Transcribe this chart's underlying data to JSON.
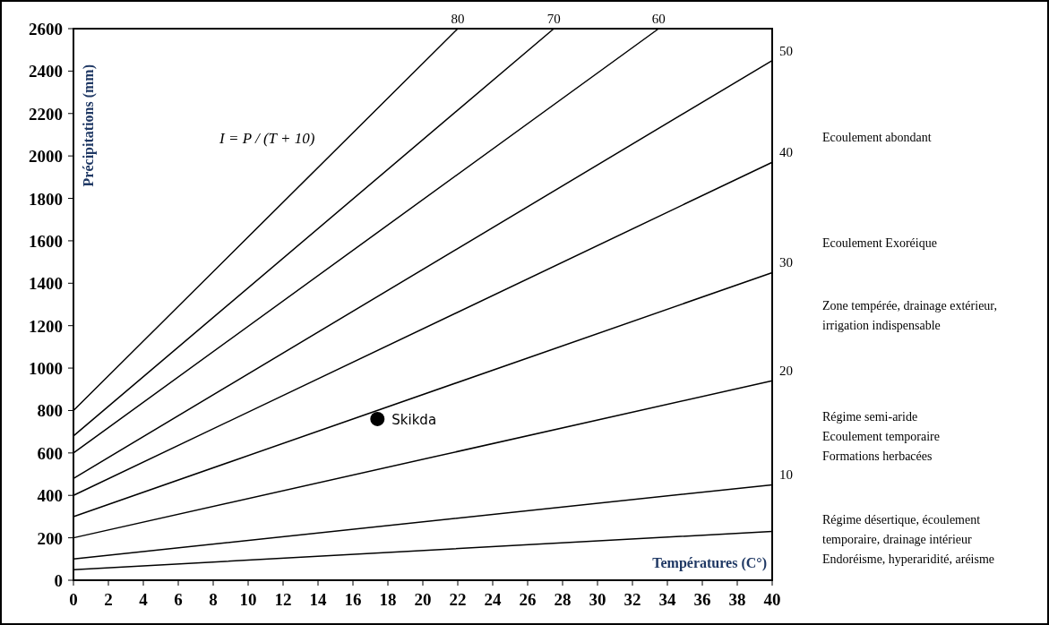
{
  "chart_data": {
    "type": "line",
    "xlabel": "Températures (C°)",
    "ylabel": "Précipitations (mm)",
    "xlim": [
      0,
      40
    ],
    "ylim": [
      0,
      2600
    ],
    "xticks": [
      0,
      2,
      4,
      6,
      8,
      10,
      12,
      14,
      16,
      18,
      20,
      22,
      24,
      26,
      28,
      30,
      32,
      34,
      36,
      38,
      40
    ],
    "yticks": [
      0,
      200,
      400,
      600,
      800,
      1000,
      1200,
      1400,
      1600,
      1800,
      2000,
      2200,
      2400,
      2600
    ],
    "grid": false,
    "marker": "none",
    "line_style": "solid",
    "series": [
      {
        "name": "80",
        "color": "#000000",
        "x": [
          0,
          22
        ],
        "values": [
          800,
          2600
        ]
      },
      {
        "name": "70",
        "color": "#000000",
        "x": [
          0,
          27.5
        ],
        "values": [
          680,
          2600
        ]
      },
      {
        "name": "60",
        "color": "#000000",
        "x": [
          0,
          33.5
        ],
        "values": [
          600,
          2600
        ]
      },
      {
        "name": "50",
        "color": "#000000",
        "x": [
          0,
          40
        ],
        "values": [
          480,
          2450
        ]
      },
      {
        "name": "40",
        "color": "#000000",
        "x": [
          0,
          40
        ],
        "values": [
          400,
          1970
        ]
      },
      {
        "name": "30",
        "color": "#000000",
        "x": [
          0,
          40
        ],
        "values": [
          300,
          1450
        ]
      },
      {
        "name": "20",
        "color": "#000000",
        "x": [
          0,
          40
        ],
        "values": [
          200,
          940
        ]
      },
      {
        "name": "10",
        "color": "#000000",
        "x": [
          0,
          40
        ],
        "values": [
          100,
          450
        ]
      },
      {
        "color": "#000000",
        "x": [
          0,
          40
        ],
        "values": [
          50,
          230
        ]
      },
      {
        "type": "scatter",
        "name": "Skikda",
        "color": "#000000",
        "marker": "circle",
        "x": [
          17.4
        ],
        "values": [
          760
        ]
      }
    ],
    "annotations": [
      "I = P / (T + 10)",
      "Ecoulement abondant",
      "Ecoulement Exoréique",
      "Zone tempérée, drainage extérieur,\nirrigation indispensable",
      "Régime semi-aride\nEcoulement temporaire\nFormations herbacées",
      "Régime désertique, écoulement\ntemporaire, drainage intérieur\nEndoréisme, hyperaridité, aréisme"
    ]
  }
}
